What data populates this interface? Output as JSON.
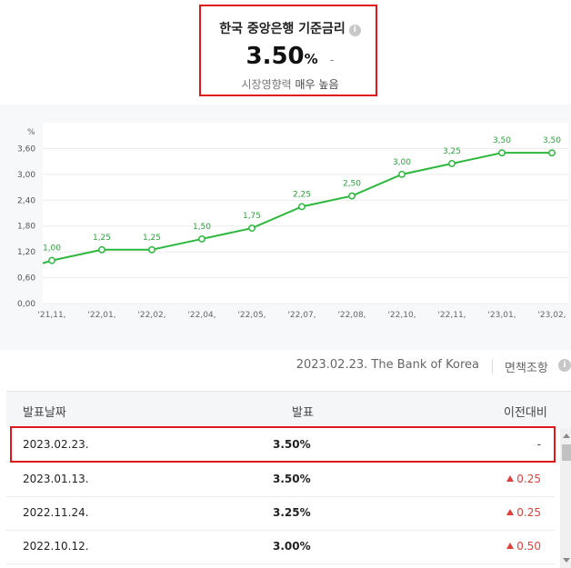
{
  "header": {
    "title": "한국 중앙은행 기준금리",
    "info_icon": "info-icon",
    "rate_value": "3.50",
    "rate_unit": "%",
    "rate_change": "-",
    "impact_label": "시장영향력",
    "impact_value": "매우 높음"
  },
  "chart_data": {
    "type": "line",
    "ylabel": "%",
    "y_ticks": [
      "3,60",
      "3,00",
      "2,40",
      "1,80",
      "1,20",
      "0,60",
      "0,00"
    ],
    "ylim": [
      0,
      4.2
    ],
    "categories": [
      "'21,11,",
      "'22,01,",
      "'22,02,",
      "'22,04,",
      "'22,05,",
      "'22,07,",
      "'22,08,",
      "'22,10,",
      "'22,11,",
      "'23,01,",
      "'23,02,"
    ],
    "values": [
      1.0,
      1.25,
      1.25,
      1.5,
      1.75,
      2.25,
      2.5,
      3.0,
      3.25,
      3.5,
      3.5
    ],
    "data_labels": [
      "1,00",
      "1,25",
      "1,25",
      "1,50",
      "1,75",
      "2,25",
      "2,50",
      "3,00",
      "3,25",
      "3,50",
      "3,50"
    ],
    "grid": true,
    "line_color": "#2db83d"
  },
  "source": {
    "text": "2023.02.23. The Bank of Korea",
    "link": "면책조항",
    "icon": "info-icon"
  },
  "table": {
    "headers": [
      "발표날짜",
      "발표",
      "이전대비"
    ],
    "rows": [
      {
        "date": "2023.02.23.",
        "value": "3.50%",
        "change": "-",
        "up": false
      },
      {
        "date": "2023.01.13.",
        "value": "3.50%",
        "change": "0.25",
        "up": true
      },
      {
        "date": "2022.11.24.",
        "value": "3.25%",
        "change": "0.25",
        "up": true
      },
      {
        "date": "2022.10.12.",
        "value": "3.00%",
        "change": "0.50",
        "up": true
      }
    ]
  },
  "colors": {
    "highlight": "#e0161b",
    "up": "#e0403a",
    "line": "#2db83d"
  }
}
